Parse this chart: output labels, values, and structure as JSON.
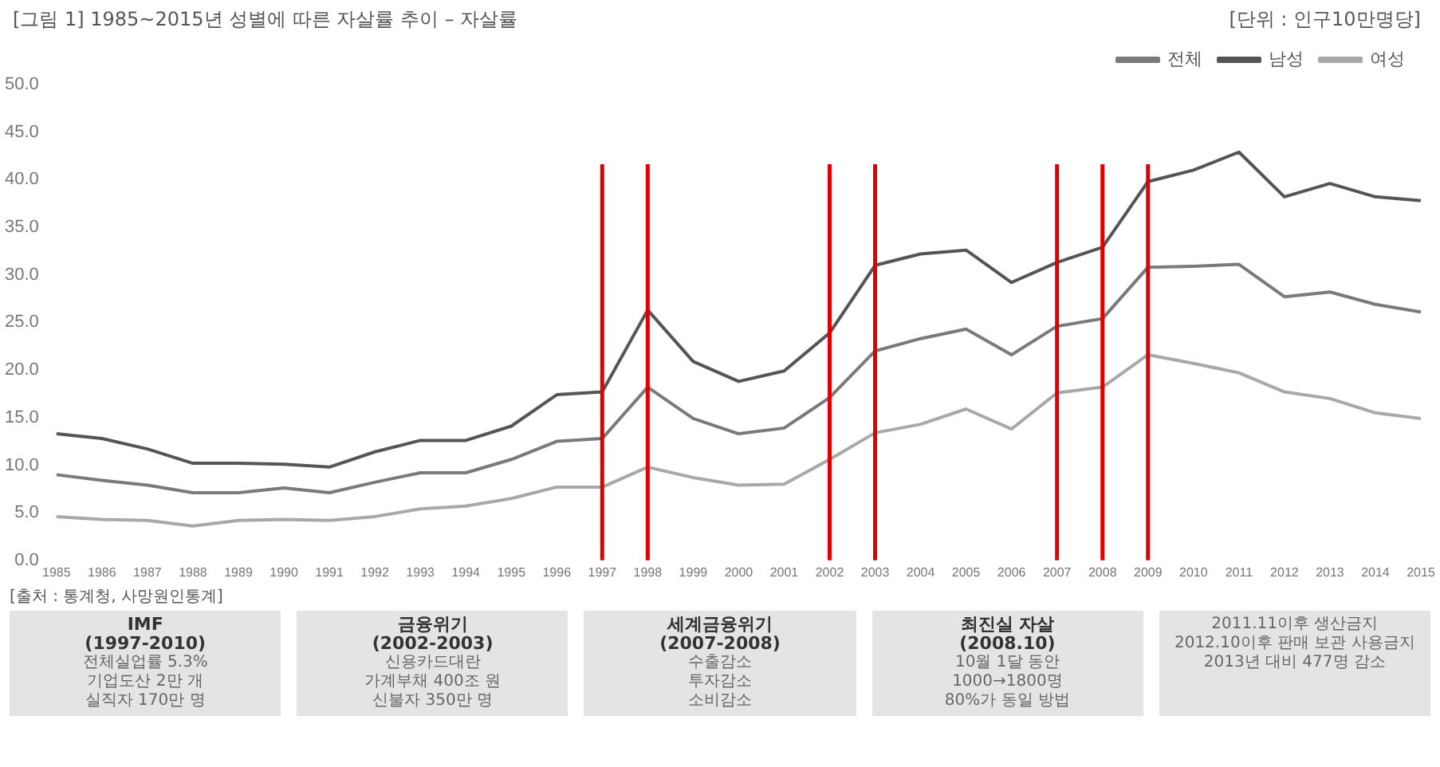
{
  "chart_data": {
    "type": "line",
    "title": "[그림 1] 1985~2015년 성별에 따른 자살률 추이 – 자살률",
    "subtitle": "[단위 : 인구10만명당]",
    "categories": [
      "1985",
      "1986",
      "1987",
      "1988",
      "1989",
      "1990",
      "1991",
      "1992",
      "1993",
      "1994",
      "1995",
      "1996",
      "1997",
      "1998",
      "1999",
      "2000",
      "2001",
      "2002",
      "2003",
      "2004",
      "2005",
      "2006",
      "2007",
      "2008",
      "2009",
      "2010",
      "2011",
      "2012",
      "2013",
      "2014",
      "2015"
    ],
    "series": [
      {
        "name": "전체",
        "color": "#7a7a7a",
        "values": [
          9.0,
          8.4,
          7.9,
          7.1,
          7.1,
          7.6,
          7.1,
          8.2,
          9.2,
          9.2,
          10.6,
          12.5,
          12.8,
          18.2,
          14.9,
          13.3,
          13.9,
          17.1,
          22.0,
          23.3,
          24.3,
          21.6,
          24.6,
          25.4,
          30.8,
          30.9,
          31.1,
          27.7,
          28.2,
          26.9,
          26.1
        ]
      },
      {
        "name": "남성",
        "color": "#555555",
        "values": [
          13.3,
          12.8,
          11.7,
          10.2,
          10.2,
          10.1,
          9.8,
          11.4,
          12.6,
          12.6,
          14.1,
          17.4,
          17.7,
          26.3,
          20.9,
          18.8,
          19.9,
          23.9,
          31.0,
          32.2,
          32.6,
          29.2,
          31.3,
          32.9,
          39.8,
          41.0,
          42.9,
          38.2,
          39.6,
          38.2,
          37.8
        ]
      },
      {
        "name": "여성",
        "color": "#a8a8a8",
        "values": [
          4.6,
          4.3,
          4.2,
          3.6,
          4.2,
          4.3,
          4.2,
          4.6,
          5.4,
          5.7,
          6.5,
          7.7,
          7.7,
          9.8,
          8.7,
          7.9,
          8.0,
          10.6,
          13.4,
          14.3,
          15.9,
          13.8,
          17.6,
          18.2,
          21.6,
          20.7,
          19.7,
          17.7,
          17.0,
          15.5,
          14.9
        ]
      }
    ],
    "ylim": [
      0,
      50
    ],
    "yticks": [
      {
        "value": 0,
        "label": "0.0"
      },
      {
        "value": 5,
        "label": "5.0"
      },
      {
        "value": 10,
        "label": "10.0"
      },
      {
        "value": 15,
        "label": "15.0"
      },
      {
        "value": 20,
        "label": "20.0"
      },
      {
        "value": 25,
        "label": "25.0"
      },
      {
        "value": 30,
        "label": "30.0"
      },
      {
        "value": 35,
        "label": "35.0"
      },
      {
        "value": 40,
        "label": "40.0"
      },
      {
        "value": 45,
        "label": "45.0"
      },
      {
        "value": 50,
        "label": "50.0"
      }
    ],
    "grid": false,
    "legend": "top right",
    "marker": "none",
    "ref_lines": [
      {
        "axis": "x",
        "value": "1997",
        "color": "#e00000"
      },
      {
        "axis": "x",
        "value": "1998",
        "color": "#e00000"
      },
      {
        "axis": "x",
        "value": "2002",
        "color": "#e00000"
      },
      {
        "axis": "x",
        "value": "2003",
        "color": "#e00000"
      },
      {
        "axis": "x",
        "value": "2007",
        "color": "#e00000"
      },
      {
        "axis": "x",
        "value": "2008",
        "color": "#e00000"
      },
      {
        "axis": "x",
        "value": "2009",
        "color": "#e00000"
      }
    ],
    "annotations": [
      "[출처 : 통계청, 사망원인통계]",
      "IMF\n(1997-2010)\n전체실업률 5.3%\n기업도산 2만 개\n실직자 170만 명",
      "금융위기\n(2002-2003)\n신용카드대란\n가계부채 400조 원\n신불자 350만 명",
      "세계금융위기\n(2007-2008)\n수출감소\n투자감소\n소비감소",
      "최진실 자살\n(2008.10)\n10월 1달 동안\n1000→1800명\n80%가 동일 방법",
      "2011.11이후 생산금지\n2012.10이후 판매 보관 사용금지\n2013년 대비 477명 감소"
    ]
  }
}
